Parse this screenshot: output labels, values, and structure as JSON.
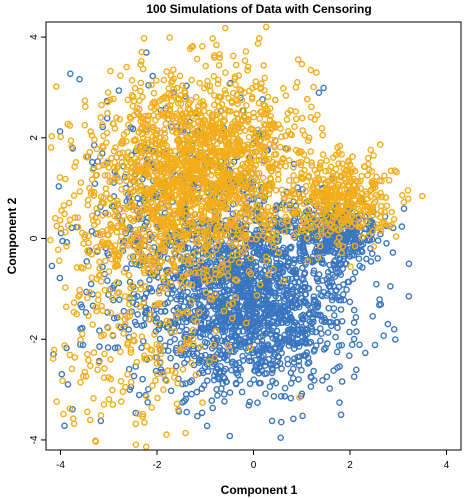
{
  "chart_data": {
    "type": "scatter",
    "title": "100 Simulations of Data with Censoring",
    "xlabel": "Component 1",
    "ylabel": "Component 2",
    "xlim": [
      -4.3,
      4.3
    ],
    "ylim": [
      -4.2,
      4.3
    ],
    "xticks": [
      -4,
      -2,
      0,
      2,
      4
    ],
    "yticks": [
      -4,
      -2,
      0,
      2,
      4
    ],
    "xtick_labels": [
      "-4",
      "-2",
      "0",
      "2",
      "4"
    ],
    "ytick_labels": [
      "-4",
      "-2",
      "0",
      "2",
      "4"
    ],
    "grid": false,
    "legend": false,
    "marker": "open-circle",
    "series": [
      {
        "color": "#3a76c0",
        "clusters": [
          {
            "center": [
              0.0,
              -1.2
            ],
            "spread": [
              1.0,
              0.9
            ],
            "count": 1500
          },
          {
            "center": [
              1.7,
              0.1
            ],
            "spread": [
              0.45,
              0.35
            ],
            "count": 320
          },
          {
            "center": [
              -1.2,
              -0.6
            ],
            "spread": [
              1.4,
              1.3
            ],
            "count": 600
          },
          {
            "center": [
              -1.5,
              1.5
            ],
            "spread": [
              1.2,
              0.9
            ],
            "count": 120
          }
        ]
      },
      {
        "color": "#f2ad1a",
        "clusters": [
          {
            "center": [
              -1.0,
              1.5
            ],
            "spread": [
              1.0,
              0.9
            ],
            "count": 1500
          },
          {
            "center": [
              1.8,
              0.8
            ],
            "spread": [
              0.55,
              0.4
            ],
            "count": 380
          },
          {
            "center": [
              -2.2,
              0.0
            ],
            "spread": [
              1.0,
              1.2
            ],
            "count": 500
          },
          {
            "center": [
              -2.5,
              -2.5
            ],
            "spread": [
              0.9,
              0.9
            ],
            "count": 120
          }
        ]
      }
    ]
  }
}
